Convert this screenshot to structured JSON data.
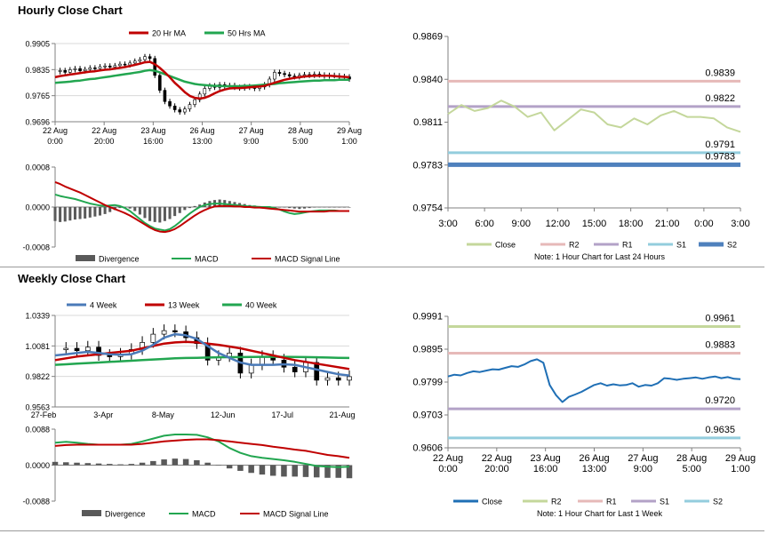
{
  "sections": {
    "hourly_title": "Hourly Close Chart",
    "weekly_title": "Weekly Close Chart"
  },
  "colors": {
    "red": "#c00000",
    "green": "#22a650",
    "blue": "#4a7ab8",
    "divergence": "#595959",
    "close_green": "#c4d79b",
    "r2": "#e6b9b8",
    "r1": "#b3a2c7",
    "s1": "#93cddd",
    "s2": "#4f81bd",
    "close_blue": "#1f6fb5"
  },
  "chart_data": [
    {
      "id": "hourly_price",
      "type": "line",
      "legend": [
        "20 Hr MA",
        "50 Hrs MA"
      ],
      "y_ticks": [
        "0.9905",
        "0.9835",
        "0.9765",
        "0.9696"
      ],
      "ylim": [
        0.9696,
        0.9905
      ],
      "x_labels": [
        [
          "22 Aug",
          "0:00"
        ],
        [
          "22 Aug",
          "20:00"
        ],
        [
          "23 Aug",
          "16:00"
        ],
        [
          "26 Aug",
          "13:00"
        ],
        [
          "27 Aug",
          "9:00"
        ],
        [
          "28 Aug",
          "5:00"
        ],
        [
          "29 Aug",
          "1:00"
        ]
      ],
      "series": [
        {
          "name": "Close",
          "values": [
            0.983,
            0.9833,
            0.9828,
            0.9835,
            0.9838,
            0.9832,
            0.9836,
            0.984,
            0.9838,
            0.9843,
            0.9845,
            0.9842,
            0.9846,
            0.985,
            0.9848,
            0.9853,
            0.9858,
            0.9862,
            0.987,
            0.9865,
            0.982,
            0.978,
            0.975,
            0.9738,
            0.9728,
            0.9722,
            0.973,
            0.9742,
            0.9755,
            0.977,
            0.9785,
            0.9792,
            0.9788,
            0.9795,
            0.979,
            0.9793,
            0.9788,
            0.9786,
            0.979,
            0.9788,
            0.9785,
            0.9789,
            0.9795,
            0.981,
            0.9828,
            0.9825,
            0.9822,
            0.9818,
            0.9816,
            0.982,
            0.9822,
            0.982,
            0.9823,
            0.9821,
            0.9818,
            0.982,
            0.9819,
            0.9817,
            0.9816,
            0.981
          ]
        },
        {
          "name": "20 Hr MA",
          "values": [
            0.9815,
            0.9818,
            0.982,
            0.9822,
            0.9824,
            0.9826,
            0.9828,
            0.983,
            0.9831,
            0.9833,
            0.9835,
            0.9836,
            0.9838,
            0.984,
            0.9842,
            0.9845,
            0.9848,
            0.9851,
            0.9855,
            0.9856,
            0.985,
            0.984,
            0.9828,
            0.9815,
            0.98,
            0.9788,
            0.9775,
            0.9765,
            0.976,
            0.9758,
            0.976,
            0.9765,
            0.9772,
            0.9778,
            0.9782,
            0.9785,
            0.9786,
            0.9786,
            0.9787,
            0.9788,
            0.9789,
            0.979,
            0.9792,
            0.9796,
            0.98,
            0.9804,
            0.9808,
            0.9811,
            0.9813,
            0.9815,
            0.9817,
            0.9818,
            0.9819,
            0.9819,
            0.9819,
            0.9819,
            0.9818,
            0.9817,
            0.9816,
            0.9815
          ]
        },
        {
          "name": "50 Hrs MA",
          "values": [
            0.98,
            0.9801,
            0.9802,
            0.9803,
            0.9805,
            0.9806,
            0.9808,
            0.981,
            0.9811,
            0.9813,
            0.9815,
            0.9817,
            0.9819,
            0.9821,
            0.9823,
            0.9825,
            0.9827,
            0.9829,
            0.9832,
            0.9834,
            0.9832,
            0.9828,
            0.9823,
            0.9818,
            0.9813,
            0.9808,
            0.9803,
            0.98,
            0.9797,
            0.9795,
            0.9794,
            0.9793,
            0.9792,
            0.9792,
            0.9791,
            0.9791,
            0.9791,
            0.9791,
            0.9792,
            0.9792,
            0.9793,
            0.9794,
            0.9795,
            0.9796,
            0.9797,
            0.9799,
            0.98,
            0.9801,
            0.9802,
            0.9803,
            0.9804,
            0.9805,
            0.9806,
            0.9806,
            0.9807,
            0.9807,
            0.9807,
            0.9808,
            0.9808,
            0.9808
          ]
        }
      ]
    },
    {
      "id": "hourly_macd",
      "type": "bar+line",
      "y_ticks": [
        "0.0008",
        "0.0000",
        "-0.0008"
      ],
      "ylim": [
        -0.0008,
        0.0008
      ],
      "legend": [
        "Divergence",
        "MACD",
        "MACD Signal Line"
      ],
      "series": [
        {
          "name": "Divergence",
          "values": [
            -0.00028,
            -0.0003,
            -0.00029,
            -0.00027,
            -0.00025,
            -0.00024,
            -0.00023,
            -0.00021,
            -0.00019,
            -0.00017,
            -0.00014,
            -0.0001,
            -6e-05,
            -2e-05,
            0.0,
            -3e-05,
            -8e-05,
            -0.00015,
            -0.00022,
            -0.00028,
            -0.0003,
            -0.00031,
            -0.00028,
            -0.00024,
            -0.00018,
            -0.00012,
            -6e-05,
            -2e-05,
            2e-05,
            5e-05,
            9e-05,
            0.00012,
            0.00014,
            0.00015,
            0.00014,
            0.00012,
            0.0001,
            8e-05,
            6e-05,
            4e-05,
            3e-05,
            2e-05,
            1e-05,
            1e-05,
            0.0,
            -1e-05,
            -1e-05,
            -2e-05,
            -3e-05,
            -4e-05,
            -3e-05,
            -2e-05,
            -1e-05,
            0.0,
            0.0,
            -1e-05,
            -1e-05,
            -1e-05,
            -1e-05,
            -1e-05
          ]
        },
        {
          "name": "MACD",
          "values": [
            0.00025,
            0.00022,
            0.0002,
            0.00018,
            0.00016,
            0.00013,
            0.0001,
            7e-05,
            5e-05,
            3e-05,
            2e-05,
            3e-05,
            4e-05,
            2e-05,
            -2e-05,
            -8e-05,
            -0.00016,
            -0.00024,
            -0.00032,
            -0.00038,
            -0.00043,
            -0.00045,
            -0.00047,
            -0.00044,
            -0.00038,
            -0.0003,
            -0.00021,
            -0.00013,
            -6e-05,
            0.0,
            4e-05,
            6e-05,
            7e-05,
            7e-05,
            6e-05,
            5e-05,
            4e-05,
            3e-05,
            2e-05,
            1e-05,
            1e-05,
            0.0,
            0.0,
            0.0,
            -2e-05,
            -5e-05,
            -9e-05,
            -0.00012,
            -0.00014,
            -0.00013,
            -0.00011,
            -9e-05,
            -8e-05,
            -7e-05,
            -7e-05,
            -7e-05,
            -7e-05,
            -8e-05,
            -8e-05,
            -8e-05
          ]
        },
        {
          "name": "MACD Signal Line",
          "values": [
            0.0005,
            0.00046,
            0.00041,
            0.00037,
            0.00033,
            0.00029,
            0.00024,
            0.00019,
            0.00014,
            9e-05,
            4e-05,
            0.0,
            -4e-05,
            -8e-05,
            -0.00012,
            -0.00017,
            -0.00023,
            -0.00029,
            -0.00035,
            -0.00041,
            -0.00046,
            -0.00049,
            -0.0005,
            -0.00048,
            -0.00044,
            -0.00038,
            -0.00031,
            -0.00024,
            -0.00017,
            -0.00011,
            -6e-05,
            -2e-05,
            1e-05,
            2e-05,
            2e-05,
            2e-05,
            1e-05,
            1e-05,
            0.0,
            0.0,
            -1e-05,
            -1e-05,
            -2e-05,
            -3e-05,
            -4e-05,
            -5e-05,
            -6e-05,
            -7e-05,
            -8e-05,
            -9e-05,
            -9e-05,
            -9e-05,
            -9e-05,
            -9e-05,
            -9e-05,
            -8e-05,
            -8e-05,
            -8e-05,
            -8e-05,
            -8e-05
          ]
        }
      ]
    },
    {
      "id": "hourly_pivots",
      "type": "line",
      "y_ticks": [
        "0.9869",
        "0.9840",
        "0.9811",
        "0.9783",
        "0.9754"
      ],
      "ylim": [
        0.9754,
        0.9869
      ],
      "x_labels": [
        "3:00",
        "6:00",
        "9:00",
        "12:00",
        "15:00",
        "18:00",
        "21:00",
        "0:00",
        "3:00"
      ],
      "levels": [
        {
          "name": "R2",
          "value": 0.9839,
          "label": "0.9839",
          "color_key": "r2",
          "width": 3
        },
        {
          "name": "R1",
          "value": 0.9822,
          "label": "0.9822",
          "color_key": "r1",
          "width": 3
        },
        {
          "name": "S1",
          "value": 0.9791,
          "label": "0.9791",
          "color_key": "s1",
          "width": 3
        },
        {
          "name": "S2",
          "value": 0.9783,
          "label": "0.9783",
          "color_key": "s2",
          "width": 5
        }
      ],
      "series": [
        {
          "name": "Close",
          "values": [
            0.9817,
            0.9823,
            0.9819,
            0.9821,
            0.9826,
            0.9822,
            0.9815,
            0.9818,
            0.9806,
            0.9813,
            0.982,
            0.9818,
            0.981,
            0.9808,
            0.9814,
            0.981,
            0.9816,
            0.9819,
            0.9815,
            0.9815,
            0.9814,
            0.9808,
            0.9805
          ]
        }
      ],
      "legend": [
        "Close",
        "R2",
        "R1",
        "S1",
        "S2"
      ],
      "note": "Note: 1 Hour Chart for Last 24 Hours"
    },
    {
      "id": "weekly_price",
      "type": "line",
      "legend": [
        "4 Week",
        "13 Week",
        "40 Week"
      ],
      "y_ticks": [
        "1.0339",
        "1.0081",
        "0.9822",
        "0.9563"
      ],
      "ylim": [
        0.9563,
        1.0339
      ],
      "x_labels": [
        "27-Feb",
        "3-Apr",
        "8-May",
        "12-Jun",
        "17-Jul",
        "21-Aug"
      ],
      "series": [
        {
          "name": "Close",
          "values": [
            1.005,
            1.006,
            1.004,
            1.007,
            1.0,
            0.999,
            1.001,
            1.005,
            1.011,
            1.018,
            1.021,
            1.02,
            1.015,
            1.01,
            0.996,
            0.999,
            1.002,
            0.985,
            0.992,
            0.999,
            0.996,
            0.99,
            0.986,
            0.994,
            0.979,
            0.981,
            0.979,
            0.982
          ]
        },
        {
          "name": "4 Week",
          "values": [
            1.0,
            1.001,
            1.002,
            1.003,
            1.002,
            1.001,
            1.0005,
            1.001,
            1.004,
            1.009,
            1.015,
            1.018,
            1.017,
            1.014,
            1.008,
            1.002,
            0.998,
            0.994,
            0.992,
            0.992,
            0.992,
            0.9925,
            0.992,
            0.99,
            0.988,
            0.986,
            0.984,
            0.983
          ]
        },
        {
          "name": "13 Week",
          "values": [
            0.996,
            0.9975,
            0.999,
            1.0,
            1.001,
            1.002,
            1.003,
            1.004,
            1.006,
            1.008,
            1.01,
            1.011,
            1.0115,
            1.011,
            1.01,
            1.009,
            1.0075,
            1.006,
            1.004,
            1.002,
            1.0,
            0.998,
            0.996,
            0.9945,
            0.993,
            0.9915,
            0.99,
            0.9885
          ]
        },
        {
          "name": "40 Week",
          "values": [
            0.992,
            0.9925,
            0.993,
            0.9935,
            0.994,
            0.9945,
            0.995,
            0.9955,
            0.996,
            0.9965,
            0.997,
            0.9975,
            0.9978,
            0.998,
            0.9982,
            0.9984,
            0.9985,
            0.9986,
            0.9987,
            0.9988,
            0.9988,
            0.9988,
            0.9987,
            0.9986,
            0.9984,
            0.9982,
            0.998,
            0.9978
          ]
        }
      ]
    },
    {
      "id": "weekly_macd",
      "type": "bar+line",
      "y_ticks": [
        "0.0088",
        "0.0000",
        "-0.0088"
      ],
      "ylim": [
        -0.0088,
        0.0088
      ],
      "legend": [
        "Divergence",
        "MACD",
        "MACD Signal Line"
      ],
      "series": [
        {
          "name": "Divergence",
          "values": [
            0.0008,
            0.0007,
            0.0006,
            0.0005,
            0.0004,
            0.0003,
            0.0002,
            0.0003,
            0.0006,
            0.001,
            0.0014,
            0.0016,
            0.0015,
            0.0012,
            0.0006,
            0.0,
            -0.0008,
            -0.0014,
            -0.0019,
            -0.0023,
            -0.0026,
            -0.0028,
            -0.0028,
            -0.0029,
            -0.003,
            -0.0031,
            -0.0031,
            -0.0032
          ]
        },
        {
          "name": "MACD",
          "values": [
            0.0055,
            0.0057,
            0.0055,
            0.0052,
            0.005,
            0.005,
            0.005,
            0.0052,
            0.0058,
            0.0065,
            0.0072,
            0.0075,
            0.0075,
            0.0074,
            0.0068,
            0.0058,
            0.0042,
            0.003,
            0.0022,
            0.0018,
            0.0015,
            0.0012,
            0.0008,
            0.0003,
            -0.0002,
            -0.0004,
            -0.0005,
            -0.0004
          ]
        },
        {
          "name": "MACD Signal Line",
          "values": [
            0.0047,
            0.0049,
            0.005,
            0.005,
            0.005,
            0.005,
            0.005,
            0.005,
            0.0052,
            0.0055,
            0.0058,
            0.006,
            0.0062,
            0.0063,
            0.0063,
            0.0061,
            0.0058,
            0.0055,
            0.0052,
            0.0049,
            0.0045,
            0.0042,
            0.0038,
            0.0035,
            0.003,
            0.0025,
            0.0022,
            0.0018
          ]
        }
      ]
    },
    {
      "id": "weekly_pivots",
      "type": "line",
      "y_ticks": [
        "0.9991",
        "0.9895",
        "0.9799",
        "0.9703",
        "0.9606"
      ],
      "ylim": [
        0.9606,
        0.9991
      ],
      "x_labels": [
        [
          "22 Aug",
          "0:00"
        ],
        [
          "22 Aug",
          "20:00"
        ],
        [
          "23 Aug",
          "16:00"
        ],
        [
          "26 Aug",
          "13:00"
        ],
        [
          "27 Aug",
          "9:00"
        ],
        [
          "28 Aug",
          "5:00"
        ],
        [
          "29 Aug",
          "1:00"
        ]
      ],
      "levels": [
        {
          "name": "R2",
          "value": 0.9961,
          "label": "0.9961",
          "color_key": "close_green",
          "width": 3
        },
        {
          "name": "R1",
          "value": 0.9883,
          "label": "0.9883",
          "color_key": "r2",
          "width": 3
        },
        {
          "name": "S1",
          "value": 0.972,
          "label": "0.9720",
          "color_key": "r1",
          "width": 3
        },
        {
          "name": "S2",
          "value": 0.9635,
          "label": "0.9635",
          "color_key": "s1",
          "width": 3
        }
      ],
      "series": [
        {
          "name": "Close",
          "values": [
            0.9815,
            0.982,
            0.9818,
            0.9825,
            0.983,
            0.9828,
            0.9832,
            0.9836,
            0.9835,
            0.984,
            0.9845,
            0.9843,
            0.985,
            0.986,
            0.9865,
            0.9855,
            0.979,
            0.976,
            0.974,
            0.9755,
            0.9762,
            0.977,
            0.978,
            0.979,
            0.9795,
            0.9788,
            0.9792,
            0.9789,
            0.979,
            0.9795,
            0.9785,
            0.979,
            0.9788,
            0.9795,
            0.981,
            0.9808,
            0.9805,
            0.9808,
            0.981,
            0.9812,
            0.9808,
            0.9812,
            0.9815,
            0.981,
            0.9813,
            0.9808,
            0.9807
          ]
        }
      ],
      "legend": [
        "Close",
        "R2",
        "R1",
        "S1",
        "S2"
      ],
      "note": "Note: 1 Hour Chart for Last 1 Week"
    }
  ]
}
